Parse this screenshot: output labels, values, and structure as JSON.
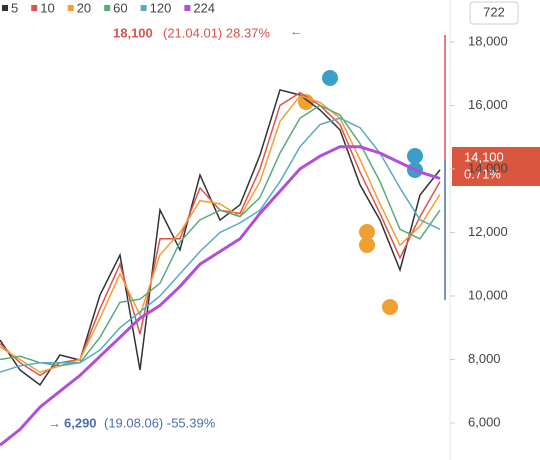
{
  "chart_data": {
    "type": "line",
    "series": [
      {
        "name": "5",
        "color": "#333333",
        "values": [
          8610,
          7670,
          7200,
          8140,
          7980,
          10030,
          11290,
          7670,
          12710,
          11450,
          13810,
          12390,
          12870,
          14440,
          16490,
          16330,
          15860,
          15230,
          13500,
          12390,
          10820,
          13180,
          13970
        ]
      },
      {
        "name": "10",
        "color": "#e0524f",
        "values": [
          8500,
          7900,
          7500,
          7900,
          8000,
          9600,
          11000,
          8800,
          11800,
          11800,
          13400,
          12700,
          12600,
          14000,
          16000,
          16400,
          16000,
          15400,
          13900,
          12600,
          11200,
          12500,
          13600
        ]
      },
      {
        "name": "20",
        "color": "#f0a030",
        "values": [
          8400,
          8000,
          7600,
          7800,
          8000,
          9300,
          10700,
          9400,
          11300,
          12000,
          13000,
          12900,
          12500,
          13600,
          15500,
          16300,
          16100,
          15600,
          14300,
          12900,
          11600,
          12200,
          13200
        ]
      },
      {
        "name": "60",
        "color": "#5aaa78",
        "values": [
          8000,
          8100,
          7900,
          7800,
          7900,
          8700,
          9800,
          9900,
          10400,
          11700,
          12400,
          12700,
          12500,
          13100,
          14500,
          15600,
          16000,
          15700,
          14800,
          13600,
          12100,
          11800,
          12700
        ]
      },
      {
        "name": "120",
        "color": "#5aa9c8",
        "values": [
          7600,
          7800,
          7900,
          7900,
          7900,
          8300,
          9000,
          9500,
          10000,
          10700,
          11400,
          12000,
          12300,
          12700,
          13600,
          14700,
          15400,
          15600,
          15300,
          14500,
          13400,
          12400,
          12100
        ]
      },
      {
        "name": "224",
        "color": "#b04fd8",
        "values": [
          5300,
          5800,
          6500,
          7000,
          7500,
          8100,
          8700,
          9300,
          9700,
          10300,
          11000,
          11400,
          11800,
          12600,
          13300,
          14000,
          14400,
          14700,
          14700,
          14500,
          14200,
          13900,
          13700
        ]
      }
    ],
    "ylim": [
      4835,
      19320
    ],
    "yticks": [
      {
        "value": 6000,
        "label": "6,000"
      },
      {
        "value": 8000,
        "label": "8,000"
      },
      {
        "value": 10000,
        "label": "10,000"
      },
      {
        "value": 12000,
        "label": "12,000"
      },
      {
        "value": 14000,
        "label": "14,000"
      },
      {
        "value": 16000,
        "label": "16,000"
      },
      {
        "value": 18000,
        "label": "18,000"
      }
    ],
    "grid": false,
    "period_button": "722",
    "high_annotation": {
      "price": "18,100",
      "detail": "(21.04.01) 28.37%"
    },
    "low_annotation": {
      "price": "6,290",
      "detail": "(19.08.06) -55.39%"
    },
    "current_price": {
      "price": "14,100",
      "change": "0.71%"
    }
  }
}
